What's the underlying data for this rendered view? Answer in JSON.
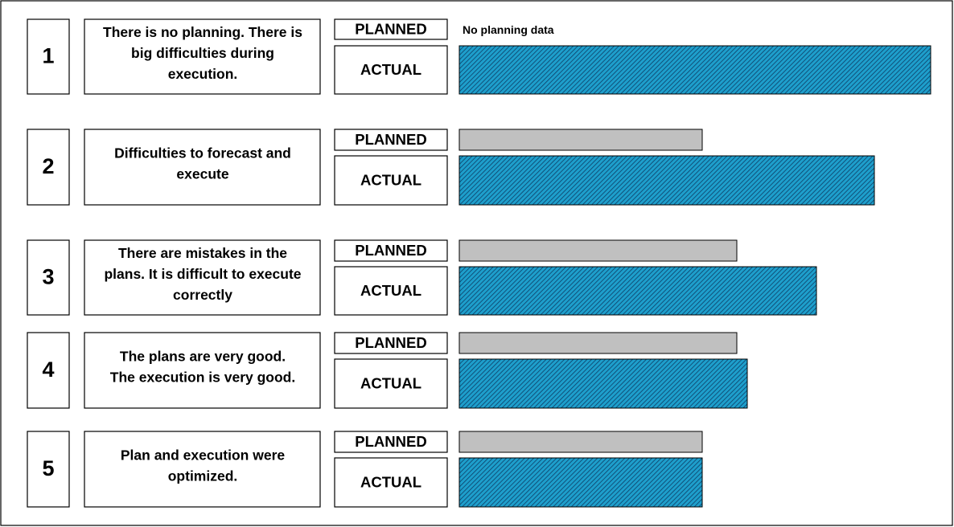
{
  "rows": [
    {
      "number": "1",
      "description": [
        "There is no planning. There is",
        "big difficulties during",
        "execution."
      ],
      "planned": "PLANNED",
      "actual": "ACTUAL",
      "note": "No planning data"
    },
    {
      "number": "2",
      "description": [
        "Difficulties to forecast and",
        "execute"
      ],
      "planned": "PLANNED",
      "actual": "ACTUAL"
    },
    {
      "number": "3",
      "description": [
        "There are mistakes in the",
        "plans. It is difficult to execute",
        "correctly"
      ],
      "planned": "PLANNED",
      "actual": "ACTUAL"
    },
    {
      "number": "4",
      "description": [
        "The plans are very good.",
        "The execution is very good."
      ],
      "planned": "PLANNED",
      "actual": "ACTUAL"
    },
    {
      "number": "5",
      "description": [
        "Plan and execution were",
        "optimized."
      ],
      "planned": "PLANNED",
      "actual": "ACTUAL"
    }
  ]
}
